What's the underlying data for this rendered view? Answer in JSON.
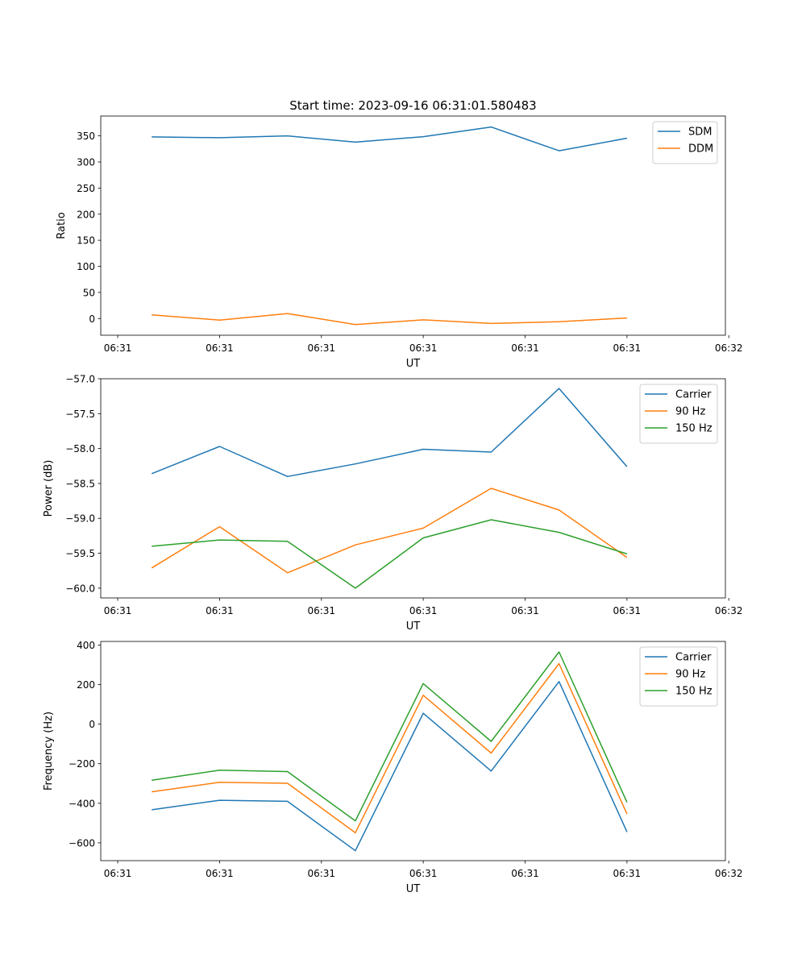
{
  "figure": {
    "title": "Start time: 2023-09-16 06:31:01.580483"
  },
  "chart_data": [
    {
      "type": "line",
      "xlabel": "UT",
      "ylabel": "Ratio",
      "x": [
        1,
        2,
        3,
        4,
        5,
        6,
        7,
        8
      ],
      "xlim": [
        0.25,
        9.45
      ],
      "xticks": [
        0.5,
        2,
        3.5,
        5,
        6.5,
        8,
        9.5
      ],
      "xticklabels": [
        "06:31",
        "06:31",
        "06:31",
        "06:31",
        "06:31",
        "06:31",
        "06:32"
      ],
      "ylim": [
        -32,
        388
      ],
      "yticks": [
        0,
        50,
        100,
        150,
        200,
        250,
        300,
        350
      ],
      "yticklabels": [
        "0",
        "50",
        "100",
        "150",
        "200",
        "250",
        "300",
        "350"
      ],
      "legend": "top-right",
      "series": [
        {
          "name": "SDM",
          "color": "#1f77b4",
          "values": [
            348,
            346.5,
            350,
            338,
            348.5,
            367,
            321.5,
            345.5
          ]
        },
        {
          "name": "DDM",
          "color": "#ff7f0e",
          "values": [
            7,
            -3,
            9.5,
            -11.5,
            -2.5,
            -9.5,
            -6,
            1
          ]
        }
      ]
    },
    {
      "type": "line",
      "xlabel": "UT",
      "ylabel": "Power (dB)",
      "x": [
        1,
        2,
        3,
        4,
        5,
        6,
        7,
        8
      ],
      "xlim": [
        0.25,
        9.45
      ],
      "xticks": [
        0.5,
        2,
        3.5,
        5,
        6.5,
        8,
        9.5
      ],
      "xticklabels": [
        "06:31",
        "06:31",
        "06:31",
        "06:31",
        "06:31",
        "06:31",
        "06:32"
      ],
      "ylim": [
        -60.14,
        -57.0
      ],
      "yticks": [
        -60.0,
        -59.5,
        -59.0,
        -58.5,
        -58.0,
        -57.5,
        -57.0
      ],
      "yticklabels": [
        "−60.0",
        "−59.5",
        "−59.0",
        "−58.5",
        "−58.0",
        "−57.5",
        "−57.0"
      ],
      "legend": "top-right",
      "series": [
        {
          "name": "Carrier",
          "color": "#1f77b4",
          "values": [
            -58.36,
            -57.97,
            -58.4,
            -58.22,
            -58.01,
            -58.05,
            -57.14,
            -58.26
          ]
        },
        {
          "name": "90 Hz",
          "color": "#ff7f0e",
          "values": [
            -59.71,
            -59.12,
            -59.78,
            -59.38,
            -59.14,
            -58.57,
            -58.88,
            -59.56
          ]
        },
        {
          "name": "150 Hz",
          "color": "#2ca02c",
          "values": [
            -59.4,
            -59.31,
            -59.33,
            -60.0,
            -59.28,
            -59.02,
            -59.2,
            -59.51
          ]
        }
      ]
    },
    {
      "type": "line",
      "xlabel": "UT",
      "ylabel": "Frequency (Hz)",
      "x": [
        1,
        2,
        3,
        4,
        5,
        6,
        7,
        8
      ],
      "xlim": [
        0.25,
        9.45
      ],
      "xticks": [
        0.5,
        2,
        3.5,
        5,
        6.5,
        8,
        9.5
      ],
      "xticklabels": [
        "06:31",
        "06:31",
        "06:31",
        "06:31",
        "06:31",
        "06:31",
        "06:32"
      ],
      "ylim": [
        -690,
        418
      ],
      "yticks": [
        -600,
        -400,
        -200,
        0,
        200,
        400
      ],
      "yticklabels": [
        "−600",
        "−400",
        "−200",
        "0",
        "200",
        "400"
      ],
      "legend": "top-right",
      "series": [
        {
          "name": "Carrier",
          "color": "#1f77b4",
          "values": [
            -433,
            -385,
            -390,
            -640,
            55,
            -237,
            215,
            -545
          ]
        },
        {
          "name": "90 Hz",
          "color": "#ff7f0e",
          "values": [
            -342,
            -294,
            -299,
            -549,
            146,
            -146,
            306,
            -454
          ]
        },
        {
          "name": "150 Hz",
          "color": "#2ca02c",
          "values": [
            -284,
            -233,
            -240,
            -489,
            205,
            -87,
            365,
            -395
          ]
        }
      ]
    }
  ]
}
